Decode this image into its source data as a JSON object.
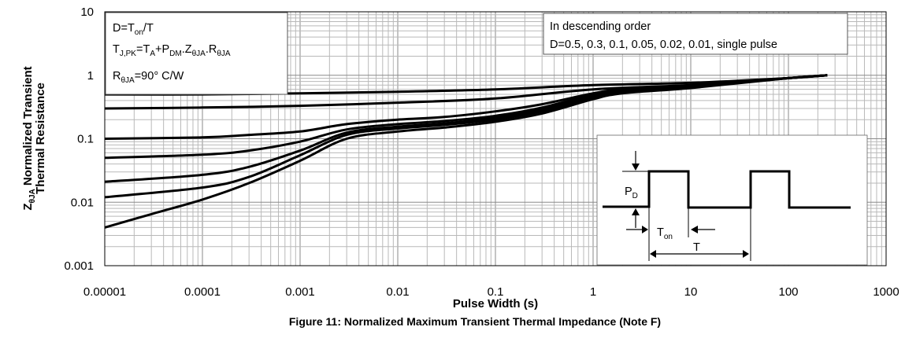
{
  "chart_data": {
    "type": "line",
    "x_scale": "log",
    "y_scale": "log",
    "xlim": [
      1e-05,
      1000
    ],
    "ylim": [
      0.001,
      10
    ],
    "grid": true,
    "xlabel": "Pulse Width (s)",
    "ylabel_line1_main": "Z",
    "ylabel_line1_sub": "θJA",
    "ylabel_line1_rest": " Normalized Transient",
    "ylabel_line2": "Thermal Resistance",
    "title": "Figure 11: Normalized Maximum Transient Thermal Impedance (Note F)",
    "x_tick_labels": [
      "0.00001",
      "0.0001",
      "0.001",
      "0.01",
      "0.1",
      "1",
      "10",
      "100",
      "1000"
    ],
    "y_tick_labels": [
      "0.001",
      "0.01",
      "0.1",
      "1",
      "10"
    ],
    "series": [
      {
        "x": [
          1e-05,
          0.0001,
          0.001,
          0.01,
          0.1,
          1,
          10,
          100,
          250
        ],
        "y": [
          0.5,
          0.5,
          0.52,
          0.55,
          0.6,
          0.7,
          0.76,
          0.9,
          1.0
        ]
      },
      {
        "x": [
          1e-05,
          0.0001,
          0.001,
          0.01,
          0.1,
          1,
          10,
          100,
          250
        ],
        "y": [
          0.3,
          0.31,
          0.33,
          0.37,
          0.43,
          0.6,
          0.7,
          0.9,
          1.0
        ]
      },
      {
        "x": [
          1e-05,
          0.0001,
          0.0003,
          0.001,
          0.003,
          0.01,
          0.03,
          0.1,
          0.3,
          1,
          2,
          10,
          100,
          250
        ],
        "y": [
          0.1,
          0.105,
          0.115,
          0.13,
          0.17,
          0.2,
          0.22,
          0.27,
          0.35,
          0.52,
          0.6,
          0.7,
          0.9,
          1.0
        ]
      },
      {
        "x": [
          1e-05,
          0.0001,
          0.0003,
          0.001,
          0.003,
          0.01,
          0.03,
          0.1,
          0.3,
          1,
          2,
          10,
          100,
          250
        ],
        "y": [
          0.05,
          0.056,
          0.065,
          0.09,
          0.14,
          0.17,
          0.19,
          0.23,
          0.31,
          0.5,
          0.58,
          0.68,
          0.9,
          1.0
        ]
      },
      {
        "x": [
          1e-05,
          0.0001,
          0.0003,
          0.001,
          0.003,
          0.01,
          0.03,
          0.1,
          0.3,
          1,
          2,
          10,
          100,
          250
        ],
        "y": [
          0.021,
          0.027,
          0.036,
          0.065,
          0.125,
          0.155,
          0.175,
          0.215,
          0.29,
          0.48,
          0.57,
          0.67,
          0.9,
          1.0
        ]
      },
      {
        "x": [
          1e-05,
          0.0001,
          0.0003,
          0.001,
          0.003,
          0.01,
          0.03,
          0.1,
          0.3,
          1,
          2,
          10,
          100,
          250
        ],
        "y": [
          0.012,
          0.017,
          0.025,
          0.055,
          0.115,
          0.145,
          0.165,
          0.2,
          0.27,
          0.45,
          0.55,
          0.65,
          0.9,
          1.0
        ]
      },
      {
        "x": [
          1e-05,
          3e-05,
          0.0001,
          0.0003,
          0.001,
          0.003,
          0.01,
          0.03,
          0.1,
          0.3,
          1,
          2,
          10,
          100,
          250
        ],
        "y": [
          0.004,
          0.0065,
          0.011,
          0.02,
          0.045,
          0.1,
          0.13,
          0.15,
          0.185,
          0.25,
          0.42,
          0.52,
          0.63,
          0.9,
          1.0
        ]
      }
    ],
    "annotations": {
      "box1_line1": {
        "main": "D=T",
        "sub": "on",
        "rest": "/T"
      },
      "box1_line2": {
        "a": "T",
        "a_sub": "J,PK",
        "b": "=T",
        "b_sub": "A",
        "c": "+P",
        "c_sub": "DM",
        "d": ".Z",
        "d_sub": "θJA",
        "e": ".R",
        "e_sub": "θJA"
      },
      "box1_line3": {
        "main": "R",
        "sub": "θJA",
        "rest": "=90°  C/W"
      },
      "box2_line1": "In descending order",
      "box2_line2": "D=0.5, 0.3, 0.1, 0.05, 0.02, 0.01, single pulse",
      "inset_pd": {
        "main": "P",
        "sub": "D"
      },
      "inset_ton": {
        "main": "T",
        "sub": "on"
      },
      "inset_t": "T"
    }
  }
}
